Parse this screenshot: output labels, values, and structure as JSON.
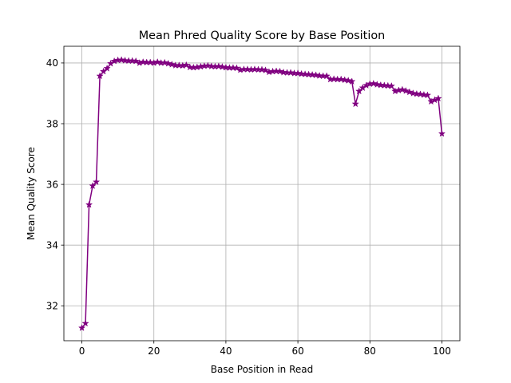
{
  "chart_data": {
    "type": "line",
    "title": "Mean Phred Quality Score by Base Position",
    "xlabel": "Base Position in Read",
    "ylabel": "Mean Quality Score",
    "xlim": [
      -5,
      105
    ],
    "ylim": [
      30.85,
      40.55
    ],
    "xticks": [
      0,
      20,
      40,
      60,
      80,
      100
    ],
    "yticks": [
      32,
      34,
      36,
      38,
      40
    ],
    "xtick_labels": [
      "0",
      "20",
      "40",
      "60",
      "80",
      "100"
    ],
    "ytick_labels": [
      "32",
      "34",
      "36",
      "38",
      "40"
    ],
    "grid": true,
    "marker": "star",
    "color": "#800080",
    "x": [
      0,
      1,
      2,
      3,
      4,
      5,
      6,
      7,
      8,
      9,
      10,
      11,
      12,
      13,
      14,
      15,
      16,
      17,
      18,
      19,
      20,
      21,
      22,
      23,
      24,
      25,
      26,
      27,
      28,
      29,
      30,
      31,
      32,
      33,
      34,
      35,
      36,
      37,
      38,
      39,
      40,
      41,
      42,
      43,
      44,
      45,
      46,
      47,
      48,
      49,
      50,
      51,
      52,
      53,
      54,
      55,
      56,
      57,
      58,
      59,
      60,
      61,
      62,
      63,
      64,
      65,
      66,
      67,
      68,
      69,
      70,
      71,
      72,
      73,
      74,
      75,
      76,
      77,
      78,
      79,
      80,
      81,
      82,
      83,
      84,
      85,
      86,
      87,
      88,
      89,
      90,
      91,
      92,
      93,
      94,
      95,
      96,
      97,
      98,
      99,
      100
    ],
    "y": [
      31.27,
      31.42,
      35.33,
      35.95,
      36.08,
      39.57,
      39.72,
      39.82,
      39.98,
      40.06,
      40.09,
      40.1,
      40.08,
      40.07,
      40.07,
      40.06,
      40.0,
      40.03,
      40.02,
      40.02,
      40.0,
      40.03,
      40.0,
      40.01,
      39.98,
      39.95,
      39.92,
      39.92,
      39.91,
      39.93,
      39.86,
      39.85,
      39.86,
      39.88,
      39.9,
      39.91,
      39.89,
      39.88,
      39.89,
      39.87,
      39.85,
      39.84,
      39.84,
      39.83,
      39.77,
      39.79,
      39.79,
      39.78,
      39.79,
      39.78,
      39.78,
      39.76,
      39.7,
      39.72,
      39.73,
      39.72,
      39.69,
      39.68,
      39.68,
      39.66,
      39.66,
      39.64,
      39.63,
      39.62,
      39.61,
      39.6,
      39.58,
      39.57,
      39.57,
      39.46,
      39.47,
      39.46,
      39.46,
      39.44,
      39.42,
      39.39,
      38.65,
      39.07,
      39.18,
      39.26,
      39.31,
      39.32,
      39.29,
      39.27,
      39.26,
      39.25,
      39.24,
      39.07,
      39.1,
      39.12,
      39.08,
      39.04,
      39.0,
      38.98,
      38.97,
      38.95,
      38.94,
      38.73,
      38.78,
      38.83,
      37.67
    ]
  }
}
